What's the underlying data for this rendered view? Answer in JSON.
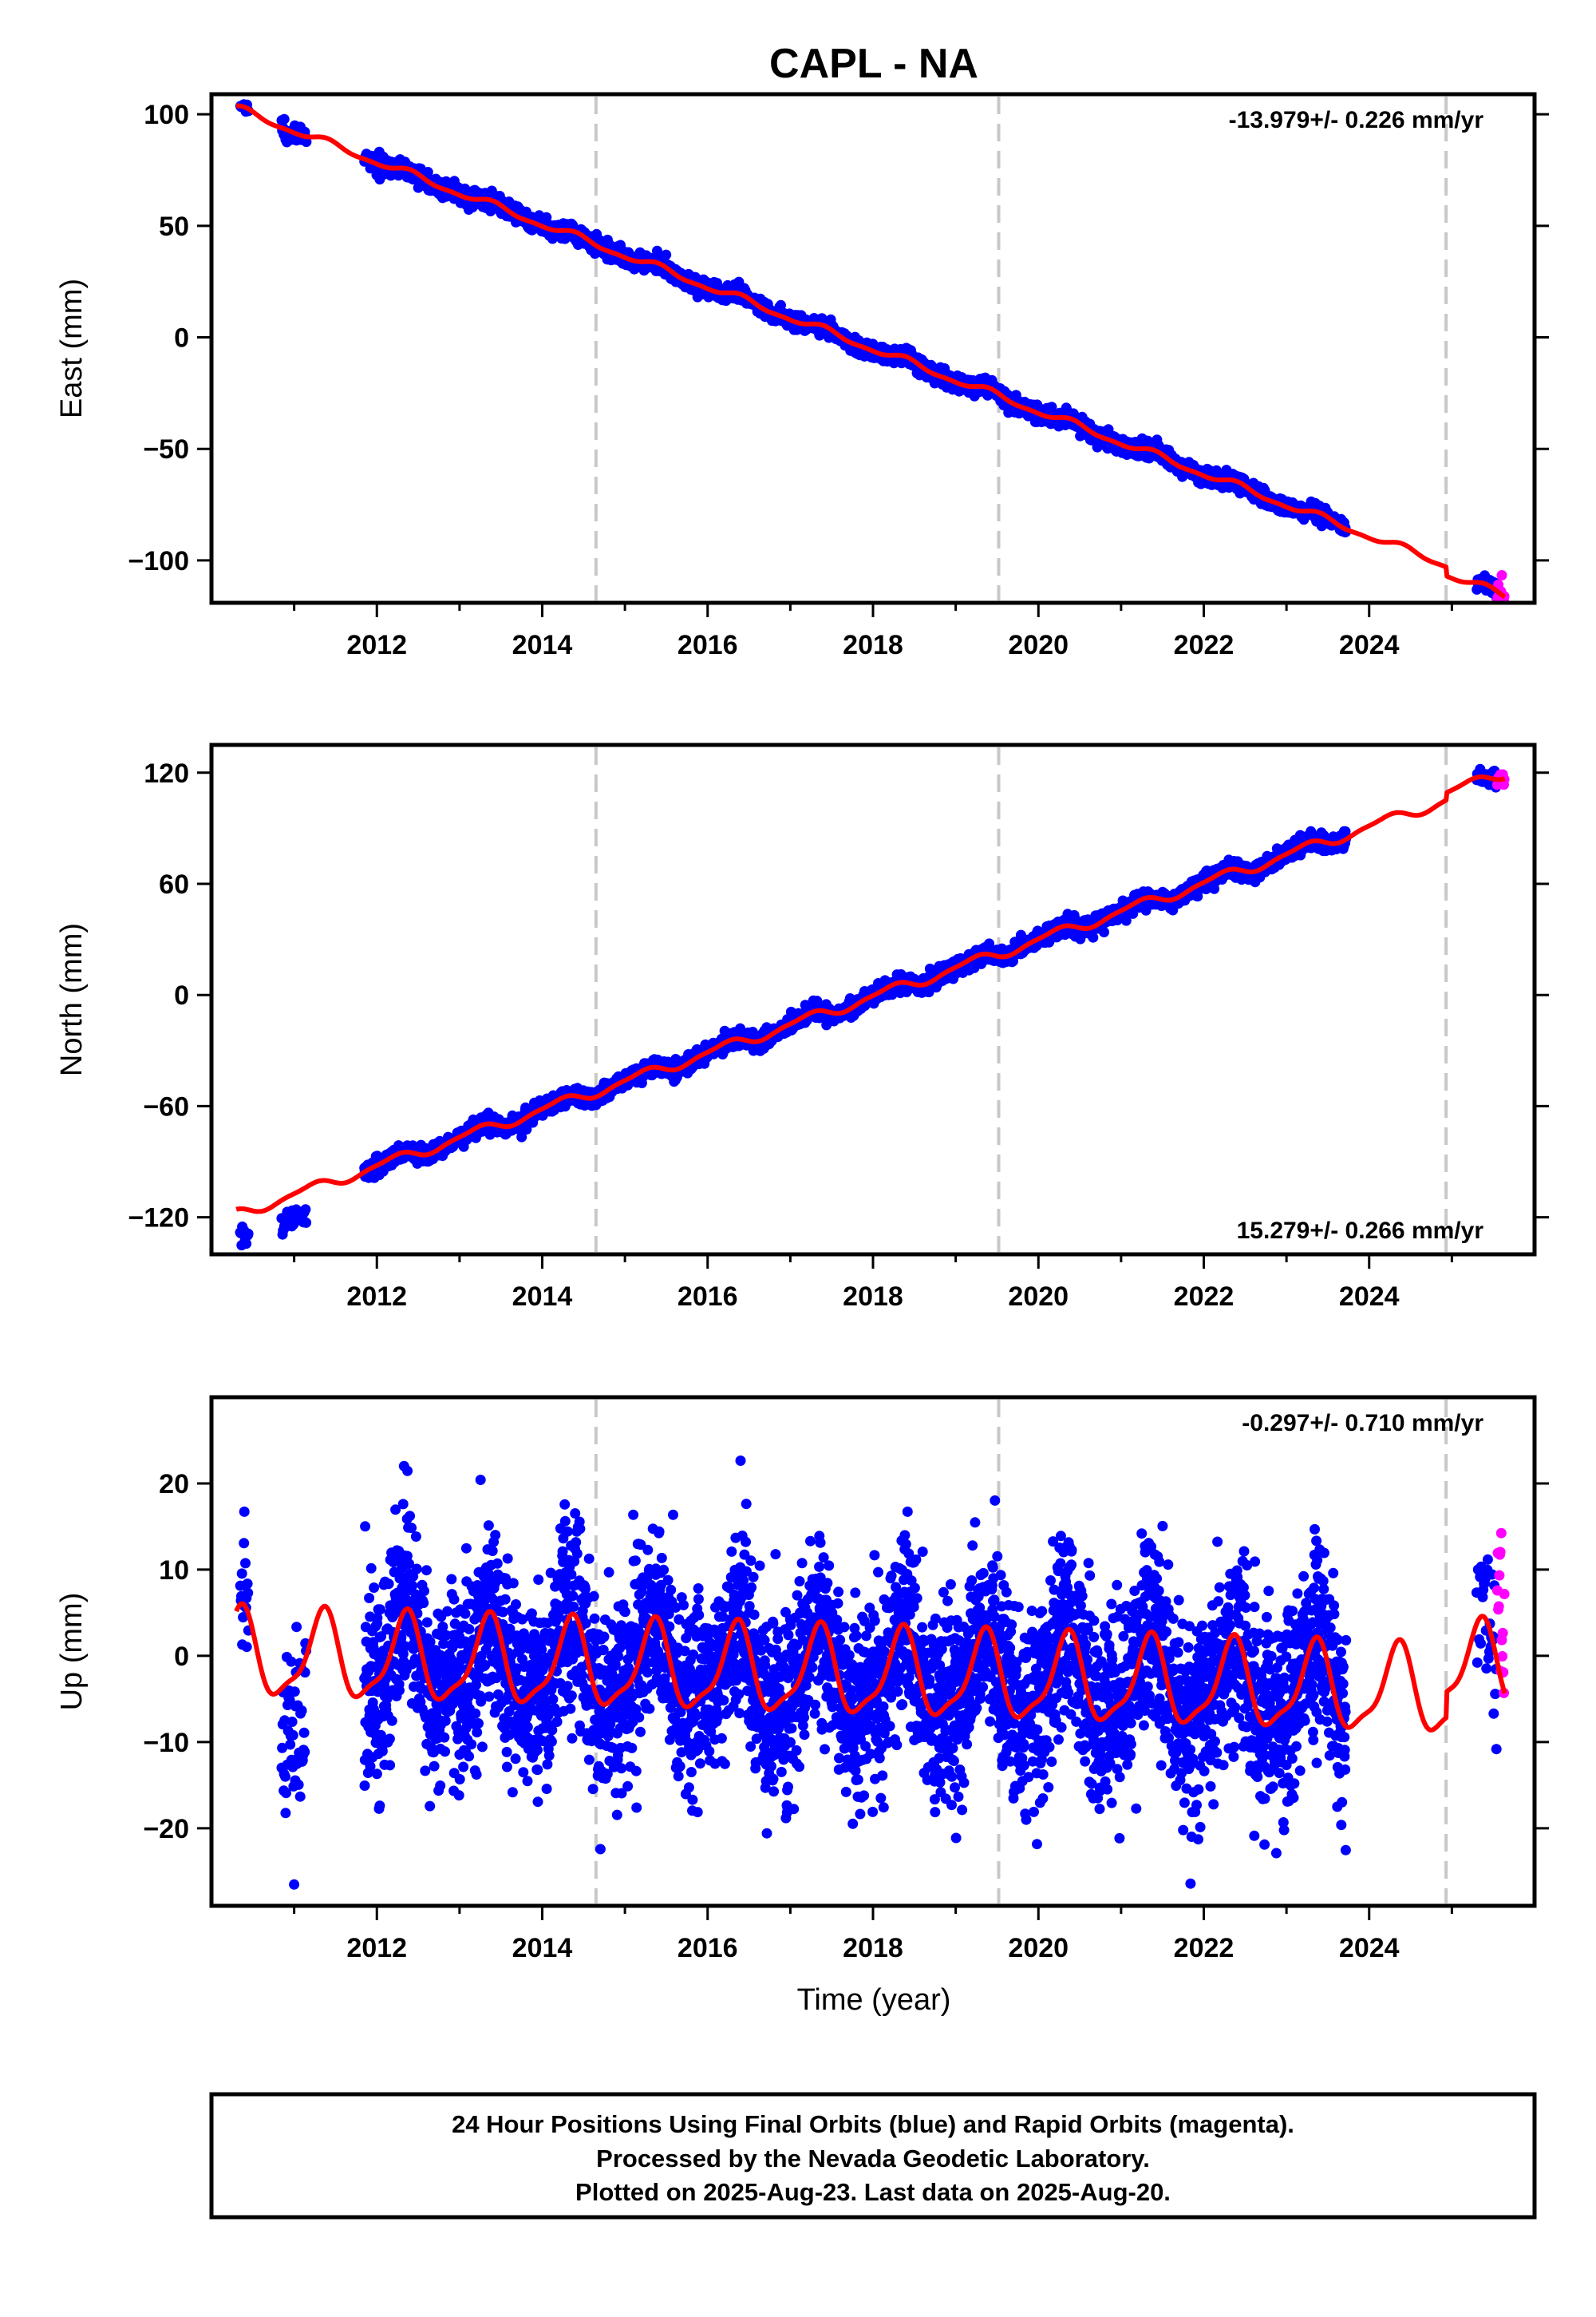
{
  "title": "CAPL - NA",
  "xlabel": "Time (year)",
  "footer_lines": [
    "24 Hour Positions Using Final Orbits (blue) and Rapid Orbits (magenta).",
    "Processed by the Nevada Geodetic Laboratory.",
    "Plotted on 2025-Aug-23. Last data on 2025-Aug-20."
  ],
  "colors": {
    "final": "#0000ff",
    "rapid": "#ff00ff",
    "model": "#ff0000",
    "event_line": "#c8c8c8"
  },
  "chart_data": [
    {
      "type": "scatter",
      "component": "East",
      "ylabel": "East (mm)",
      "rate_label": "-13.979+/- 0.226 mm/yr",
      "rate_position": "top-right",
      "xlim": [
        2010.0,
        2026.0
      ],
      "ylim": [
        -119,
        109
      ],
      "xticks": [
        2012,
        2014,
        2016,
        2018,
        2020,
        2022,
        2024
      ],
      "yticks": [
        -100,
        -50,
        0,
        50,
        100
      ],
      "ytick_labels": [
        "−100",
        "−50",
        "0",
        "50",
        "100"
      ],
      "event_lines": [
        2014.65,
        2019.52,
        2024.93
      ],
      "model": {
        "rate": -13.979,
        "annual_amp": 1.5,
        "semiannual_amp": 0.6,
        "annual_phase": 0.9,
        "semiannual_phase": 0.3,
        "ref_epoch": 2010.3,
        "ref_value": 102.5,
        "offsets": [
          {
            "epoch": 2024.93,
            "value": -4.0
          }
        ]
      },
      "final_segments": [
        {
          "start": 2010.35,
          "end": 2010.45,
          "step": 0.008,
          "scatter": 1.5
        },
        {
          "start": 2010.85,
          "end": 2011.15,
          "step": 0.008,
          "scatter": 2.2
        },
        {
          "start": 2011.85,
          "end": 2023.72,
          "step": 0.004,
          "scatter": 1.8
        },
        {
          "start": 2025.3,
          "end": 2025.55,
          "step": 0.008,
          "scatter": 1.8
        }
      ],
      "rapid_segment": {
        "start": 2025.55,
        "end": 2025.64,
        "step": 0.006,
        "scatter": 3.0
      }
    },
    {
      "type": "scatter",
      "component": "North",
      "ylabel": "North (mm)",
      "rate_label": "15.279+/- 0.266 mm/yr",
      "rate_position": "bottom-right",
      "xlim": [
        2010.0,
        2026.0
      ],
      "ylim": [
        -140,
        135
      ],
      "xticks": [
        2012,
        2014,
        2016,
        2018,
        2020,
        2022,
        2024
      ],
      "yticks": [
        -120,
        -60,
        0,
        60,
        120
      ],
      "ytick_labels": [
        "−120",
        "−60",
        "0",
        "60",
        "120"
      ],
      "event_lines": [
        2014.65,
        2019.52,
        2024.93
      ],
      "model": {
        "rate": 15.279,
        "annual_amp": 2.6,
        "semiannual_amp": 0.8,
        "annual_phase": 2.2,
        "semiannual_phase": 1.0,
        "ref_epoch": 2010.3,
        "ref_value": -118.5,
        "offsets": [
          {
            "epoch": 2024.93,
            "value": 4.0
          }
        ]
      },
      "final_segments": [
        {
          "start": 2010.35,
          "end": 2010.45,
          "step": 0.008,
          "scatter": 2.5,
          "bias": -13
        },
        {
          "start": 2010.85,
          "end": 2011.15,
          "step": 0.008,
          "scatter": 3.0,
          "bias": -13
        },
        {
          "start": 2011.85,
          "end": 2023.72,
          "step": 0.004,
          "scatter": 2.2
        },
        {
          "start": 2025.3,
          "end": 2025.55,
          "step": 0.008,
          "scatter": 2.0
        }
      ],
      "rapid_segment": {
        "start": 2025.55,
        "end": 2025.64,
        "step": 0.006,
        "scatter": 2.0
      }
    },
    {
      "type": "scatter",
      "component": "Up",
      "ylabel": "Up (mm)",
      "rate_label": "-0.297+/- 0.710 mm/yr",
      "rate_position": "top-right",
      "xlim": [
        2010.0,
        2026.0
      ],
      "ylim": [
        -29,
        30
      ],
      "xticks": [
        2012,
        2014,
        2016,
        2018,
        2020,
        2022,
        2024
      ],
      "yticks": [
        -20,
        -10,
        0,
        10,
        20
      ],
      "ytick_labels": [
        "−20",
        "−10",
        "0",
        "10",
        "20"
      ],
      "event_lines": [
        2014.65,
        2019.52,
        2024.93
      ],
      "model": {
        "rate": -0.297,
        "annual_amp": 4.8,
        "semiannual_amp": 1.4,
        "annual_phase": 1.3,
        "semiannual_phase": 0.4,
        "ref_epoch": 2010.3,
        "ref_value": 0.0,
        "offsets": [
          {
            "epoch": 2024.93,
            "value": 3.0
          }
        ]
      },
      "final_segments": [
        {
          "start": 2010.35,
          "end": 2010.45,
          "step": 0.006,
          "scatter": 5.0
        },
        {
          "start": 2010.85,
          "end": 2011.15,
          "step": 0.006,
          "scatter": 5.0,
          "bias": -6
        },
        {
          "start": 2011.85,
          "end": 2023.72,
          "step": 0.0028,
          "scatter": 5.5
        },
        {
          "start": 2025.3,
          "end": 2025.55,
          "step": 0.008,
          "scatter": 4.5
        }
      ],
      "rapid_segment": {
        "start": 2025.55,
        "end": 2025.64,
        "step": 0.006,
        "scatter": 5.0,
        "bias": 8
      }
    }
  ]
}
